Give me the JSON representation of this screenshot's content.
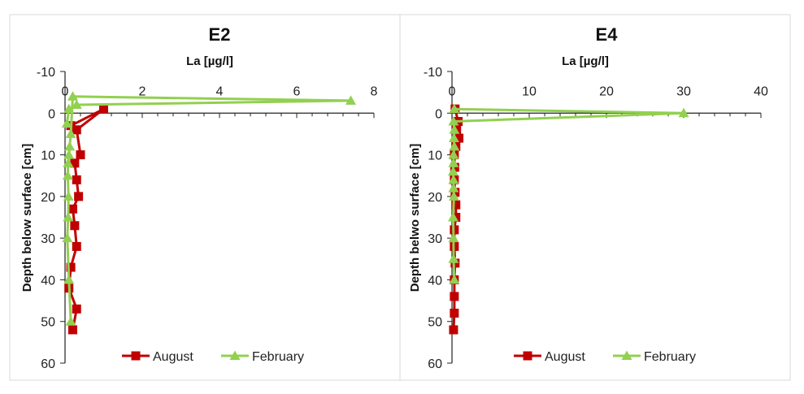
{
  "chart_data": [
    {
      "type": "line",
      "title": "E2",
      "xlabel": "La  [µg/l]",
      "ylabel": "Depth below surface [cm]",
      "xlim": [
        0,
        8
      ],
      "xticks": [
        "0",
        "2",
        "4",
        "6",
        "8"
      ],
      "ylim": [
        -10,
        60
      ],
      "yticks": [
        "-10",
        "0",
        "10",
        "20",
        "30",
        "40",
        "50",
        "60"
      ],
      "y_inverted": true,
      "x_axis_position": "top",
      "legend": "bottom",
      "series": [
        {
          "name": "August",
          "color": "#c00000",
          "marker": "square",
          "points": [
            [
              0.15,
              3
            ],
            [
              1.0,
              -1
            ],
            [
              0.3,
              4
            ],
            [
              0.4,
              10
            ],
            [
              0.25,
              12
            ],
            [
              0.3,
              16
            ],
            [
              0.35,
              20
            ],
            [
              0.2,
              23
            ],
            [
              0.25,
              27
            ],
            [
              0.3,
              32
            ],
            [
              0.15,
              37
            ],
            [
              0.1,
              42
            ],
            [
              0.3,
              47
            ],
            [
              0.2,
              52
            ]
          ]
        },
        {
          "name": "February",
          "color": "#92d050",
          "marker": "triangle",
          "points": [
            [
              0.05,
              2.5
            ],
            [
              0.1,
              -1
            ],
            [
              0.3,
              -2
            ],
            [
              7.4,
              -3
            ],
            [
              0.2,
              -4
            ],
            [
              0.15,
              5
            ],
            [
              0.12,
              8
            ],
            [
              0.1,
              10
            ],
            [
              0.08,
              12
            ],
            [
              0.07,
              15
            ],
            [
              0.09,
              20
            ],
            [
              0.08,
              25
            ],
            [
              0.06,
              30
            ],
            [
              0.1,
              40
            ],
            [
              0.15,
              50
            ]
          ]
        }
      ]
    },
    {
      "type": "line",
      "title": "E4",
      "xlabel": "La [µg/l]",
      "ylabel": "Depth belwo surface [cm]",
      "xlim": [
        0,
        40
      ],
      "xticks": [
        "0",
        "10",
        "20",
        "30",
        "40"
      ],
      "ylim": [
        -10,
        60
      ],
      "yticks": [
        "-10",
        "0",
        "10",
        "20",
        "30",
        "40",
        "50",
        "60"
      ],
      "y_inverted": true,
      "x_axis_position": "top",
      "legend": "bottom",
      "series": [
        {
          "name": "August",
          "color": "#c00000",
          "marker": "square",
          "points": [
            [
              0.4,
              -1
            ],
            [
              0.8,
              2
            ],
            [
              0.6,
              4
            ],
            [
              0.9,
              6
            ],
            [
              0.5,
              8
            ],
            [
              0.3,
              10
            ],
            [
              0.35,
              13
            ],
            [
              0.3,
              16
            ],
            [
              0.4,
              19
            ],
            [
              0.5,
              22
            ],
            [
              0.5,
              25
            ],
            [
              0.3,
              28
            ],
            [
              0.3,
              32
            ],
            [
              0.4,
              36
            ],
            [
              0.3,
              40
            ],
            [
              0.3,
              44
            ],
            [
              0.3,
              48
            ],
            [
              0.2,
              52
            ]
          ]
        },
        {
          "name": "February",
          "color": "#92d050",
          "marker": "triangle",
          "points": [
            [
              0.3,
              -1
            ],
            [
              30.0,
              0
            ],
            [
              0.2,
              2
            ],
            [
              0.3,
              4
            ],
            [
              0.25,
              6
            ],
            [
              0.3,
              8
            ],
            [
              0.2,
              10
            ],
            [
              0.2,
              12
            ],
            [
              0.15,
              14
            ],
            [
              0.2,
              16
            ],
            [
              0.2,
              18
            ],
            [
              0.25,
              20
            ],
            [
              0.15,
              25
            ],
            [
              0.2,
              30
            ],
            [
              0.2,
              35
            ],
            [
              0.3,
              40
            ]
          ]
        }
      ]
    }
  ]
}
